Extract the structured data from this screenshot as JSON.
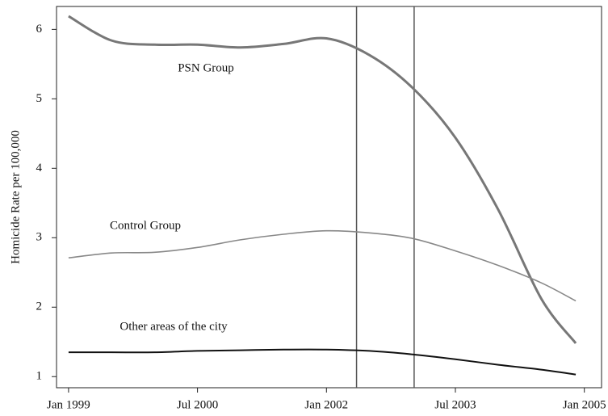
{
  "chart_data": {
    "type": "line",
    "ylabel": "Homicide Rate per 100,000",
    "x": [
      1999,
      1999.5,
      2000,
      2000.5,
      2001,
      2001.5,
      2002,
      2002.5,
      2003,
      2003.5,
      2004,
      2004.5,
      2004.9
    ],
    "series": [
      {
        "name": "PSN Group",
        "color": "#777777",
        "width": 3,
        "values": [
          6.19,
          5.84,
          5.78,
          5.78,
          5.74,
          5.79,
          5.87,
          5.63,
          5.16,
          4.44,
          3.4,
          2.12,
          1.48
        ]
      },
      {
        "name": "Control Group",
        "color": "#888888",
        "width": 1.6,
        "values": [
          2.71,
          2.78,
          2.79,
          2.86,
          2.97,
          3.05,
          3.1,
          3.07,
          2.99,
          2.81,
          2.6,
          2.35,
          2.09
        ]
      },
      {
        "name": "Other areas of the city",
        "color": "#111111",
        "width": 2,
        "values": [
          1.35,
          1.35,
          1.35,
          1.37,
          1.38,
          1.39,
          1.39,
          1.37,
          1.32,
          1.25,
          1.17,
          1.1,
          1.03
        ]
      }
    ],
    "vlines": [
      2002.35,
      2003.02
    ],
    "xlim": [
      1998.86,
      2005.2
    ],
    "xticks": [
      {
        "value": 1999,
        "label": "Jan 1999"
      },
      {
        "value": 2000.5,
        "label": "Jul 2000"
      },
      {
        "value": 2002,
        "label": "Jan 2002"
      },
      {
        "value": 2003.5,
        "label": "Jul 2003"
      },
      {
        "value": 2005,
        "label": "Jan 2005"
      }
    ],
    "ylim": [
      0.84,
      6.33
    ],
    "yticks": [
      1,
      2,
      3,
      4,
      5,
      6
    ],
    "grid": false
  }
}
